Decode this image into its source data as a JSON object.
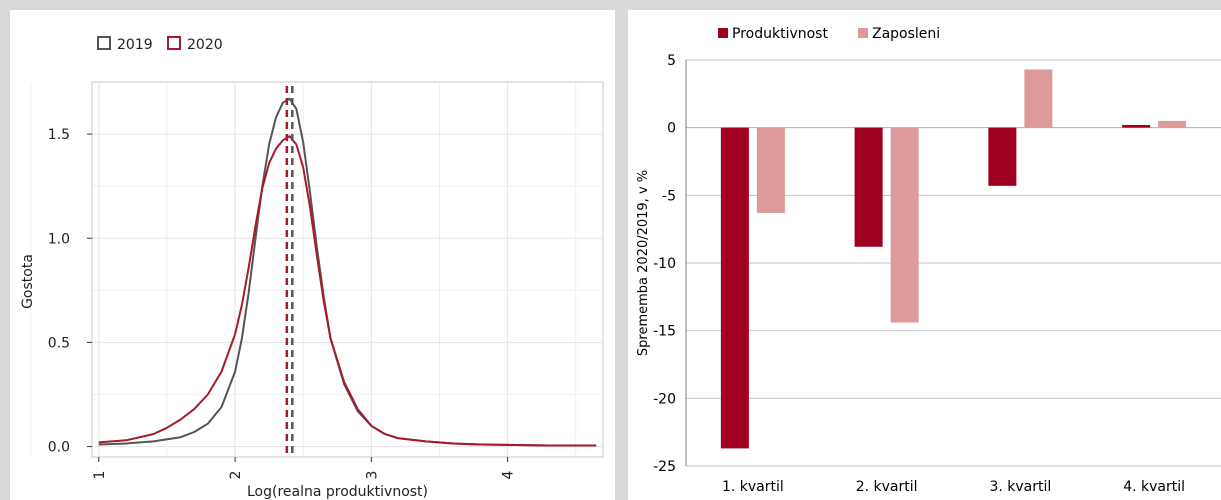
{
  "chart_data": [
    {
      "type": "line",
      "xlabel": "Log(realna produktivnost)",
      "ylabel": "Gostota",
      "xlim": [
        0.95,
        4.7
      ],
      "ylim": [
        -0.05,
        1.75
      ],
      "x_ticks": [
        1,
        2,
        3,
        4
      ],
      "x_tick_labels": [
        "1",
        "2",
        "3",
        "4"
      ],
      "y_ticks": [
        0.0,
        0.5,
        1.0,
        1.5
      ],
      "y_tick_labels": [
        "0.0",
        "0.5",
        "1.0",
        "1.5"
      ],
      "grid": true,
      "legend_position": "top-left",
      "series": [
        {
          "name": "2019",
          "color": "#555555",
          "mean_line_x": 2.42,
          "x": [
            1.0,
            1.2,
            1.4,
            1.6,
            1.7,
            1.8,
            1.9,
            2.0,
            2.05,
            2.1,
            2.15,
            2.2,
            2.25,
            2.3,
            2.35,
            2.4,
            2.45,
            2.5,
            2.55,
            2.6,
            2.65,
            2.7,
            2.8,
            2.9,
            3.0,
            3.1,
            3.2,
            3.4,
            3.6,
            3.8,
            4.0,
            4.3,
            4.65
          ],
          "y": [
            0.01,
            0.015,
            0.025,
            0.045,
            0.07,
            0.11,
            0.19,
            0.36,
            0.52,
            0.74,
            1.0,
            1.25,
            1.45,
            1.58,
            1.65,
            1.67,
            1.62,
            1.46,
            1.22,
            0.96,
            0.72,
            0.52,
            0.3,
            0.17,
            0.1,
            0.06,
            0.04,
            0.025,
            0.015,
            0.01,
            0.008,
            0.005,
            0.005
          ]
        },
        {
          "name": "2020",
          "color": "#a6192e",
          "mean_line_x": 2.38,
          "x": [
            1.0,
            1.2,
            1.4,
            1.5,
            1.6,
            1.7,
            1.8,
            1.9,
            2.0,
            2.05,
            2.1,
            2.15,
            2.2,
            2.25,
            2.3,
            2.35,
            2.4,
            2.45,
            2.5,
            2.55,
            2.6,
            2.65,
            2.7,
            2.8,
            2.9,
            3.0,
            3.1,
            3.2,
            3.4,
            3.6,
            3.8,
            4.0,
            4.3,
            4.65
          ],
          "y": [
            0.02,
            0.03,
            0.06,
            0.09,
            0.13,
            0.18,
            0.25,
            0.36,
            0.54,
            0.68,
            0.86,
            1.06,
            1.24,
            1.36,
            1.43,
            1.47,
            1.49,
            1.45,
            1.34,
            1.15,
            0.92,
            0.7,
            0.52,
            0.31,
            0.18,
            0.1,
            0.06,
            0.04,
            0.025,
            0.015,
            0.01,
            0.008,
            0.005,
            0.005
          ]
        }
      ]
    },
    {
      "type": "bar",
      "xlabel": "",
      "ylabel": "Sprememba 2020/2019, v %",
      "ylim": [
        -25,
        5
      ],
      "y_ticks": [
        5,
        0,
        -5,
        -10,
        -15,
        -20,
        -25
      ],
      "y_tick_labels": [
        "5",
        "0",
        "-5",
        "-10",
        "-15",
        "-20",
        "-25"
      ],
      "grid": true,
      "legend_position": "top-left",
      "categories": [
        "1. kvartil",
        "2. kvartil",
        "3. kvartil",
        "4. kvartil"
      ],
      "series": [
        {
          "name": "Produktivnost",
          "color": "#a00020",
          "values": [
            -23.7,
            -8.8,
            -4.3,
            0.2
          ]
        },
        {
          "name": "Zaposleni",
          "color": "#dc9a9a",
          "values": [
            -6.3,
            -14.4,
            4.3,
            0.5
          ]
        }
      ]
    }
  ]
}
